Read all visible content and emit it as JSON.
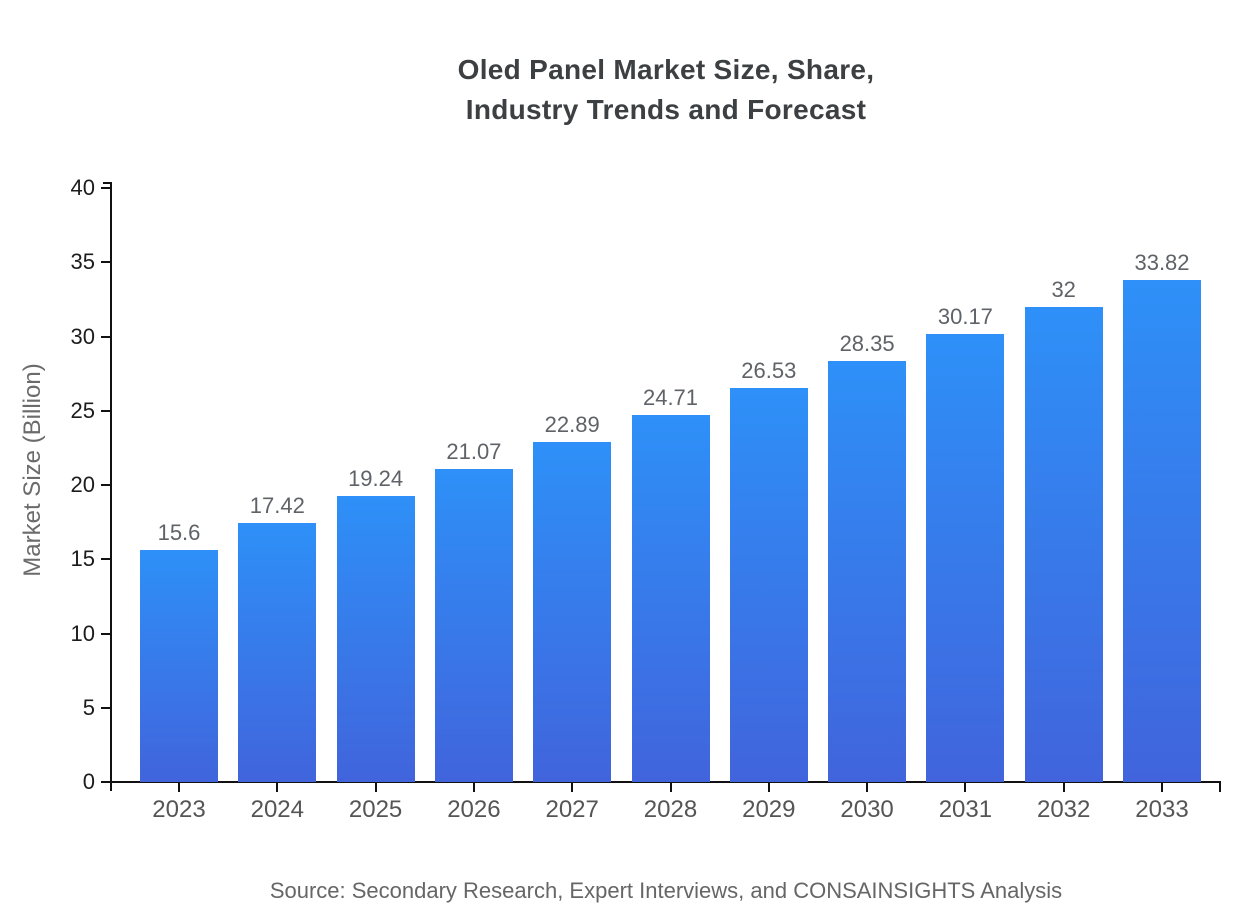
{
  "chart_data": {
    "type": "bar",
    "title_lines": [
      "Oled Panel Market Size, Share,",
      "Industry Trends and Forecast"
    ],
    "categories": [
      "2023",
      "2024",
      "2025",
      "2026",
      "2027",
      "2028",
      "2029",
      "2030",
      "2031",
      "2032",
      "2033"
    ],
    "values": [
      15.6,
      17.42,
      19.24,
      21.07,
      22.89,
      24.71,
      26.53,
      28.35,
      30.17,
      32,
      33.82
    ],
    "value_labels": [
      "15.6",
      "17.42",
      "19.24",
      "21.07",
      "22.89",
      "24.71",
      "26.53",
      "28.35",
      "30.17",
      "32",
      "33.82"
    ],
    "xlabel": "",
    "ylabel": "Market Size (Billion)",
    "ylim": [
      0,
      40
    ],
    "yticks": [
      0,
      5,
      10,
      15,
      20,
      25,
      30,
      35,
      40
    ],
    "grid": false,
    "legend": "none",
    "source": "Source: Secondary Research, Expert Interviews, and CONSAINSIGHTS Analysis",
    "colors": {
      "bar_gradient_top": "#2E90F8",
      "bar_gradient_bottom": "#4164DC",
      "axis": "#111111",
      "ytick_label": "#1c1c1c",
      "xtick_label": "#555555",
      "value_label": "#5f6368",
      "title": "#3c4043",
      "muted_text": "#666666",
      "background": "#ffffff"
    }
  }
}
